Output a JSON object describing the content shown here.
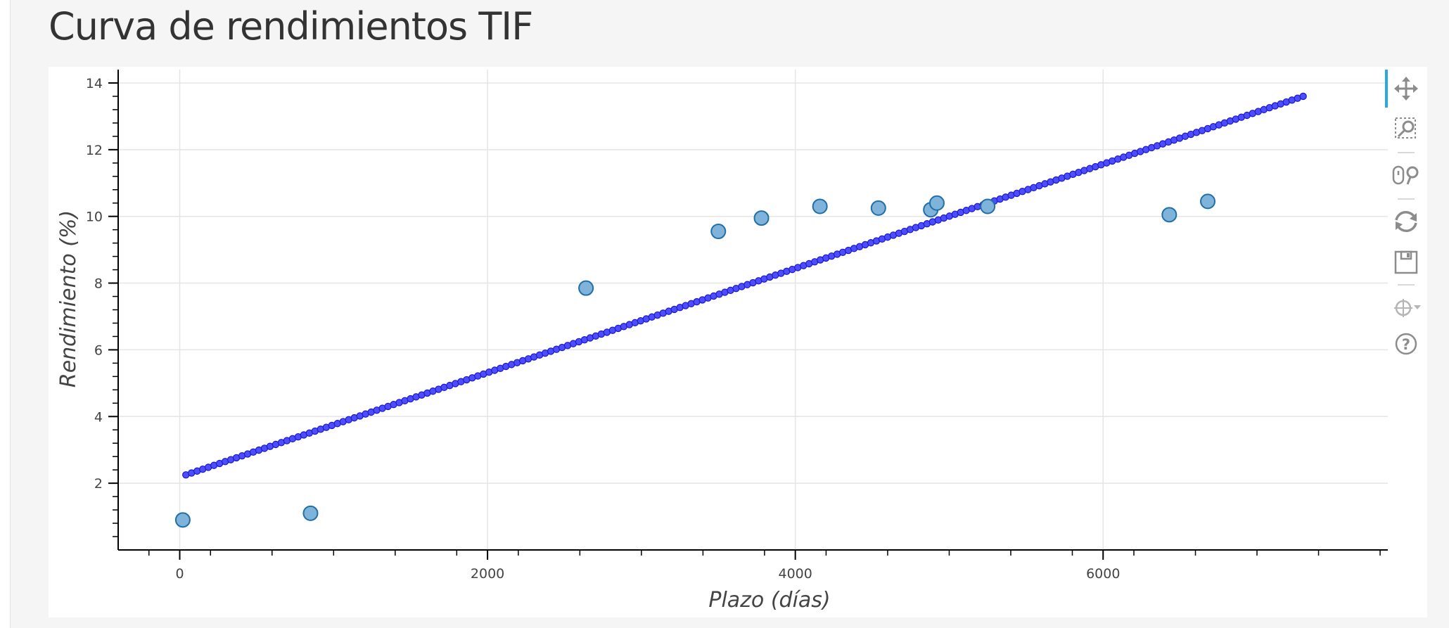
{
  "page": {
    "title": "Curva de rendimientos TIF"
  },
  "toolbar": {
    "tools": [
      {
        "name": "pan-tool-icon",
        "active": true
      },
      {
        "name": "box-zoom-tool-icon",
        "active": false
      },
      {
        "name": "wheel-zoom-tool-icon",
        "active": false
      },
      {
        "name": "reset-tool-icon",
        "active": false
      },
      {
        "name": "save-tool-icon",
        "active": false
      },
      {
        "name": "crosshair-tool-icon",
        "active": false
      },
      {
        "name": "help-tool-icon",
        "active": false
      }
    ],
    "active_color": "#26aae1"
  },
  "chart_data": {
    "type": "scatter",
    "xlabel": "Plazo (días)",
    "ylabel": "Rendimiento (%)",
    "xlim": [
      -400,
      7850
    ],
    "ylim": [
      0,
      14.4
    ],
    "x_ticks": [
      0,
      2000,
      4000,
      6000
    ],
    "y_ticks": [
      2,
      4,
      6,
      8,
      10,
      12,
      14
    ],
    "grid": true,
    "legend": "none",
    "series": [
      {
        "kind": "scatter",
        "color": "#1f77b4",
        "points": [
          [
            20,
            0.9
          ],
          [
            850,
            1.1
          ],
          [
            2640,
            7.85
          ],
          [
            3500,
            9.55
          ],
          [
            3780,
            9.95
          ],
          [
            4160,
            10.3
          ],
          [
            4540,
            10.25
          ],
          [
            4880,
            10.2
          ],
          [
            4920,
            10.4
          ],
          [
            5250,
            10.3
          ],
          [
            6430,
            10.05
          ],
          [
            6680,
            10.45
          ]
        ]
      },
      {
        "kind": "fitted-line-markers",
        "color": "#0000ff",
        "x_start": 40,
        "x_end": 7300,
        "y_start": 2.25,
        "y_end": 13.6,
        "count": 200
      }
    ]
  }
}
